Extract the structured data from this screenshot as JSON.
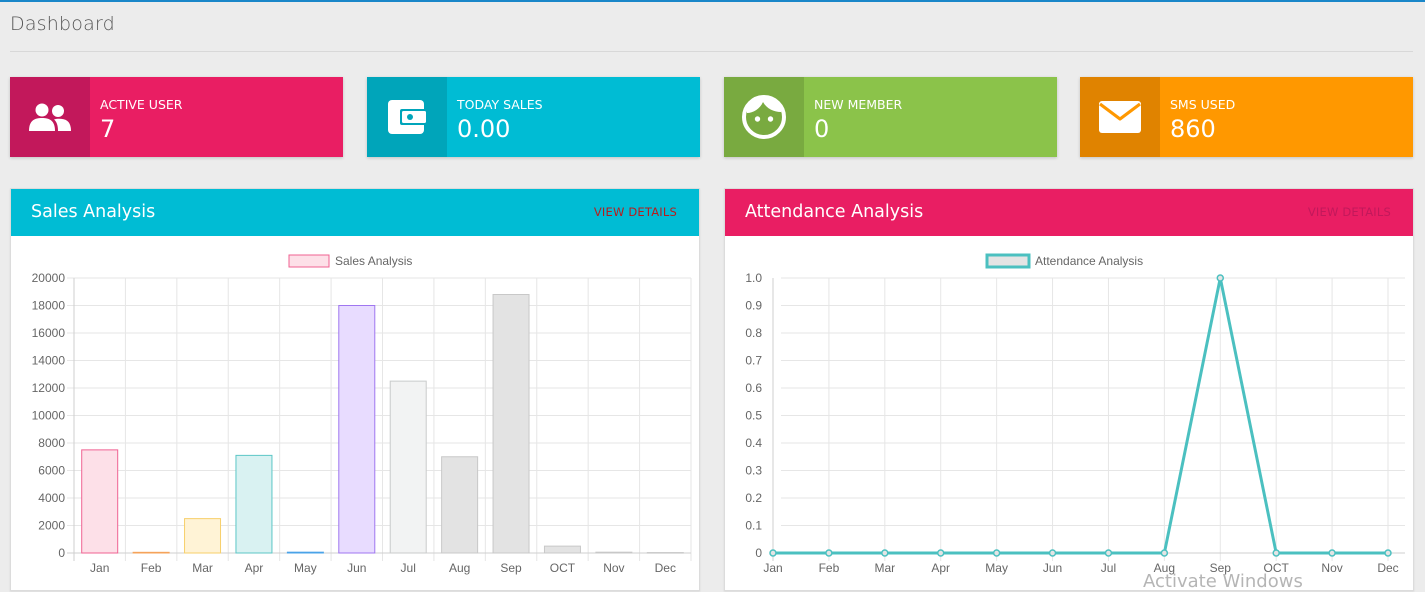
{
  "header": {
    "title": "Dashboard"
  },
  "colors": {
    "topline": "#1a87c9",
    "pink": "#e91e63",
    "pink_dark": "#c2185b",
    "cyan": "#00bcd4",
    "cyan_dark": "#00a5ba",
    "green": "#8bc34a",
    "green_dark": "#79aa40",
    "orange": "#ff9800",
    "orange_dark": "#e08300",
    "link_red": "#b71c1c"
  },
  "stats": [
    {
      "label": "ACTIVE USER",
      "value": "7",
      "icon": "users-icon"
    },
    {
      "label": "TODAY SALES",
      "value": "0.00",
      "icon": "wallet-icon"
    },
    {
      "label": "NEW MEMBER",
      "value": "0",
      "icon": "face-icon"
    },
    {
      "label": "SMS USED",
      "value": "860",
      "icon": "envelope-icon"
    }
  ],
  "sales_panel": {
    "title": "Sales Analysis",
    "link": "VIEW DETAILS"
  },
  "attendance_panel": {
    "title": "Attendance Analysis",
    "link": "VIEW DETAILS"
  },
  "chart_data": [
    {
      "type": "bar",
      "title": "Sales Analysis",
      "legend": "Sales Analysis",
      "categories": [
        "Jan",
        "Feb",
        "Mar",
        "Apr",
        "May",
        "Jun",
        "Jul",
        "Aug",
        "Sep",
        "OCT",
        "Nov",
        "Dec"
      ],
      "values": [
        7500,
        50,
        2500,
        7100,
        60,
        18000,
        12500,
        7000,
        18800,
        500,
        60,
        30
      ],
      "yticks": [
        "0",
        "2000",
        "4000",
        "6000",
        "8000",
        "10000",
        "12000",
        "14000",
        "16000",
        "18000",
        "20000"
      ],
      "ylim": [
        0,
        20000
      ],
      "bar_fills": [
        "#fde0e8",
        "#fde9d4",
        "#fff3d6",
        "#d9f2f2",
        "#d6ebfb",
        "#e8dcff",
        "#f2f3f3",
        "#e3e3e3",
        "#e3e3e3",
        "#e3e3e3",
        "#e3e3e3",
        "#e3e3e3"
      ],
      "bar_strokes": [
        "#f06292",
        "#f5a35a",
        "#f7cf6a",
        "#5cc6c6",
        "#4aa3e8",
        "#9f76f0",
        "#c9cbcb",
        "#c8c8c8",
        "#c8c8c8",
        "#c8c8c8",
        "#c8c8c8",
        "#c8c8c8"
      ],
      "legend_fill": "#fde0e8",
      "legend_stroke": "#f06292",
      "grid": true
    },
    {
      "type": "line",
      "title": "Attendance Analysis",
      "legend": "Attendance Analysis",
      "categories": [
        "Jan",
        "Feb",
        "Mar",
        "Apr",
        "May",
        "Jun",
        "Jul",
        "Aug",
        "Sep",
        "OCT",
        "Nov",
        "Dec"
      ],
      "values": [
        0,
        0,
        0,
        0,
        0,
        0,
        0,
        0,
        1,
        0,
        0,
        0
      ],
      "yticks": [
        "0",
        "0.1",
        "0.2",
        "0.3",
        "0.4",
        "0.5",
        "0.6",
        "0.7",
        "0.8",
        "0.9",
        "1.0"
      ],
      "ylim": [
        0,
        1
      ],
      "line_color": "#4bc0c0",
      "legend_fill": "#e4e4e4",
      "legend_stroke": "#4bc0c0",
      "grid": true
    }
  ],
  "watermark": "Activate Windows"
}
